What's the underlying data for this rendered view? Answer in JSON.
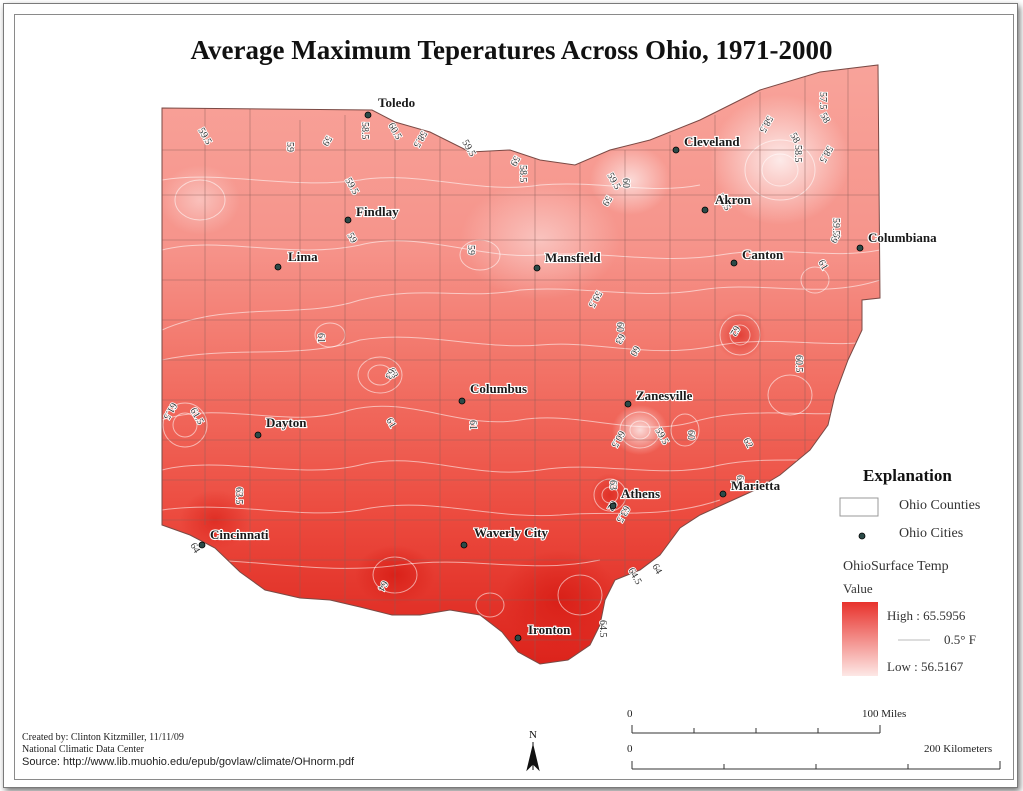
{
  "title": "Average Maximum Teperatures Across Ohio, 1971-2000",
  "cities": [
    {
      "name": "Toledo"
    },
    {
      "name": "Cleveland"
    },
    {
      "name": "Akron"
    },
    {
      "name": "Findlay"
    },
    {
      "name": "Columbiana"
    },
    {
      "name": "Lima"
    },
    {
      "name": "Mansfield"
    },
    {
      "name": "Canton"
    },
    {
      "name": "Columbus"
    },
    {
      "name": "Zanesville"
    },
    {
      "name": "Dayton"
    },
    {
      "name": "Athens"
    },
    {
      "name": "Marietta"
    },
    {
      "name": "Cincinnati"
    },
    {
      "name": "Waverly City"
    },
    {
      "name": "Ironton"
    }
  ],
  "isotherm_labels": [
    "59.5",
    "59",
    "59",
    "60.5",
    "58.5",
    "58.5",
    "59.5",
    "58.5",
    "59",
    "59.5",
    "57.5",
    "58.5",
    "58",
    "58.5",
    "58.5",
    "59.5",
    "60",
    "59",
    "59.5",
    "59.5",
    "59",
    "59",
    "59",
    "59.5",
    "61",
    "60",
    "62",
    "63",
    "61",
    "61.5",
    "61",
    "61",
    "60",
    "59.5",
    "60.5",
    "63",
    "62",
    "60",
    "60.5",
    "61.5",
    "63.5",
    "64",
    "64",
    "63",
    "63.5",
    "64.5",
    "64.5",
    "62",
    "64",
    "63",
    "63",
    "58"
  ],
  "legend": {
    "title": "Explanation",
    "counties_label": "Ohio Counties",
    "cities_label": "Ohio Cities",
    "raster_title": "OhioSurface Temp",
    "value_label": "Value",
    "high_label": "High : 65.5956",
    "contour_label": "0.5° F",
    "low_label": "Low : 56.5167",
    "high_color": "#e8322c",
    "low_color": "#fde8e6"
  },
  "scale_bar": {
    "miles_zero": "0",
    "miles_label": "100 Miles",
    "km_zero": "0",
    "km_label": "200 Kilometers"
  },
  "north_label": "N",
  "credits": {
    "created_by": "Created by: Clinton Kitzmiller, 11/11/09",
    "agency": "National Climatic Data Center",
    "source": "Source: http://www.lib.muohio.edu/epub/govlaw/climate/OHnorm.pdf"
  }
}
